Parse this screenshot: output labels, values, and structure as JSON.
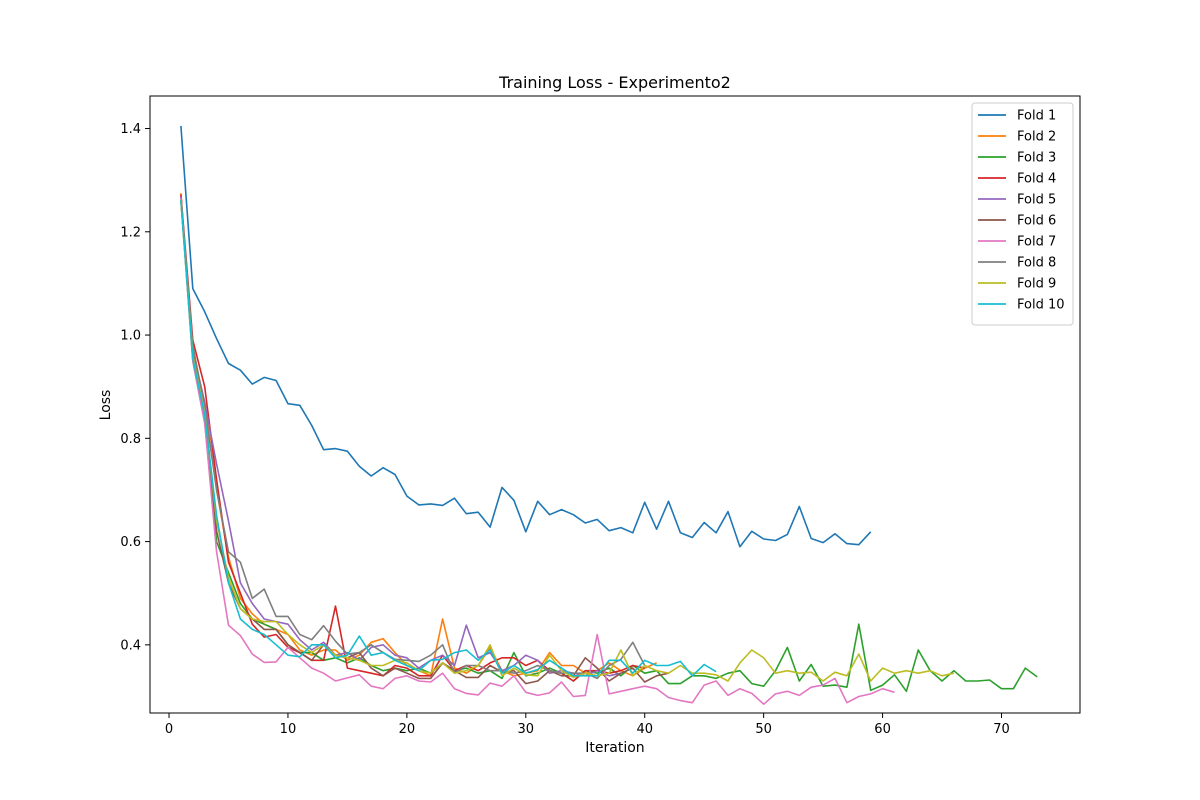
{
  "chart_data": {
    "type": "line",
    "title": "Training Loss - Experimento2",
    "xlabel": "Iteration",
    "ylabel": "Loss",
    "xlim": [
      -1.6,
      76.6
    ],
    "ylim": [
      0.268,
      1.463
    ],
    "xticks": [
      0,
      10,
      20,
      30,
      40,
      50,
      60,
      70
    ],
    "yticks": [
      0.4,
      0.6,
      0.8,
      1.0,
      1.2,
      1.4
    ],
    "ytick_labels": [
      "0.4",
      "0.6",
      "0.8",
      "1.0",
      "1.2",
      "1.4"
    ],
    "grid": false,
    "legend_position": "top-right",
    "series": [
      {
        "name": "Fold 1",
        "color": "#1f77b4",
        "values": [
          1.405,
          1.09,
          1.045,
          0.993,
          0.945,
          0.932,
          0.905,
          0.918,
          0.912,
          0.867,
          0.864,
          0.825,
          0.778,
          0.78,
          0.775,
          0.746,
          0.727,
          0.743,
          0.73,
          0.688,
          0.671,
          0.673,
          0.67,
          0.684,
          0.654,
          0.657,
          0.628,
          0.705,
          0.68,
          0.619,
          0.678,
          0.652,
          0.662,
          0.652,
          0.636,
          0.643,
          0.621,
          0.627,
          0.617,
          0.676,
          0.624,
          0.678,
          0.617,
          0.608,
          0.637,
          0.617,
          0.658,
          0.59,
          0.62,
          0.605,
          0.602,
          0.614,
          0.668,
          0.606,
          0.598,
          0.615,
          0.596,
          0.594,
          0.619
        ]
      },
      {
        "name": "Fold 2",
        "color": "#ff7f0e",
        "values": [
          1.275,
          0.96,
          0.87,
          0.7,
          0.57,
          0.49,
          0.46,
          0.44,
          0.43,
          0.42,
          0.39,
          0.38,
          0.39,
          0.39,
          0.37,
          0.38,
          0.405,
          0.412,
          0.385,
          0.36,
          0.35,
          0.34,
          0.45,
          0.355,
          0.345,
          0.36,
          0.395,
          0.35,
          0.34,
          0.345,
          0.35,
          0.385,
          0.36,
          0.36,
          0.345,
          0.35,
          0.365,
          0.35,
          0.34,
          0.355,
          0.365
        ]
      },
      {
        "name": "Fold 3",
        "color": "#2ca02c",
        "values": [
          1.26,
          0.95,
          0.83,
          0.6,
          0.54,
          0.48,
          0.45,
          0.44,
          0.43,
          0.4,
          0.385,
          0.385,
          0.37,
          0.375,
          0.365,
          0.375,
          0.36,
          0.35,
          0.355,
          0.35,
          0.355,
          0.345,
          0.365,
          0.35,
          0.355,
          0.345,
          0.35,
          0.335,
          0.385,
          0.34,
          0.345,
          0.355,
          0.345,
          0.33,
          0.35,
          0.345,
          0.355,
          0.34,
          0.36,
          0.345,
          0.35,
          0.325,
          0.325,
          0.34,
          0.34,
          0.335,
          0.345,
          0.35,
          0.325,
          0.32,
          0.35,
          0.395,
          0.33,
          0.362,
          0.32,
          0.322,
          0.318,
          0.44,
          0.312,
          0.322,
          0.342,
          0.31,
          0.39,
          0.35,
          0.33,
          0.35,
          0.33,
          0.33,
          0.332,
          0.315,
          0.315,
          0.355,
          0.338
        ]
      },
      {
        "name": "Fold 4",
        "color": "#d62728",
        "values": [
          1.272,
          0.99,
          0.9,
          0.72,
          0.56,
          0.5,
          0.44,
          0.415,
          0.42,
          0.395,
          0.385,
          0.37,
          0.37,
          0.475,
          0.355,
          0.35,
          0.345,
          0.34,
          0.36,
          0.355,
          0.34,
          0.34,
          0.38,
          0.35,
          0.36,
          0.35,
          0.365,
          0.375,
          0.375,
          0.36,
          0.37,
          0.35,
          0.345,
          0.33,
          0.35,
          0.35,
          0.345,
          0.35,
          0.36,
          0.355
        ]
      },
      {
        "name": "Fold 5",
        "color": "#9467bd",
        "values": [
          1.268,
          0.97,
          0.87,
          0.75,
          0.64,
          0.52,
          0.48,
          0.45,
          0.445,
          0.44,
          0.41,
          0.39,
          0.405,
          0.38,
          0.385,
          0.37,
          0.395,
          0.4,
          0.38,
          0.375,
          0.355,
          0.37,
          0.38,
          0.36,
          0.438,
          0.375,
          0.385,
          0.35,
          0.36,
          0.38,
          0.37,
          0.345,
          0.35,
          0.345,
          0.34,
          0.35,
          0.34,
          0.345
        ]
      },
      {
        "name": "Fold 6",
        "color": "#8c564b",
        "values": [
          1.262,
          0.965,
          0.86,
          0.62,
          0.52,
          0.47,
          0.45,
          0.43,
          0.43,
          0.4,
          0.385,
          0.37,
          0.4,
          0.38,
          0.375,
          0.385,
          0.355,
          0.34,
          0.355,
          0.345,
          0.335,
          0.335,
          0.365,
          0.35,
          0.337,
          0.337,
          0.36,
          0.347,
          0.35,
          0.325,
          0.33,
          0.35,
          0.34,
          0.34,
          0.375,
          0.355,
          0.33,
          0.345,
          0.355,
          0.328,
          0.34,
          0.345
        ]
      },
      {
        "name": "Fold 7",
        "color": "#e377c2",
        "values": [
          1.265,
          0.95,
          0.83,
          0.58,
          0.438,
          0.418,
          0.382,
          0.366,
          0.367,
          0.395,
          0.375,
          0.355,
          0.345,
          0.33,
          0.336,
          0.342,
          0.32,
          0.315,
          0.335,
          0.34,
          0.33,
          0.328,
          0.345,
          0.315,
          0.306,
          0.303,
          0.326,
          0.32,
          0.34,
          0.308,
          0.302,
          0.307,
          0.328,
          0.3,
          0.302,
          0.42,
          0.305,
          0.31,
          0.315,
          0.32,
          0.315,
          0.298,
          0.292,
          0.288,
          0.322,
          0.33,
          0.302,
          0.315,
          0.306,
          0.285,
          0.305,
          0.31,
          0.302,
          0.318,
          0.322,
          0.335,
          0.288,
          0.3,
          0.305,
          0.315,
          0.308
        ]
      },
      {
        "name": "Fold 8",
        "color": "#7f7f7f",
        "values": [
          1.262,
          0.98,
          0.86,
          0.7,
          0.58,
          0.56,
          0.49,
          0.508,
          0.455,
          0.455,
          0.42,
          0.41,
          0.437,
          0.407,
          0.382,
          0.385,
          0.4,
          0.385,
          0.372,
          0.37,
          0.368,
          0.38,
          0.4,
          0.345,
          0.36,
          0.36,
          0.35,
          0.35,
          0.345,
          0.35,
          0.36,
          0.35,
          0.345,
          0.345,
          0.345,
          0.335,
          0.36,
          0.372,
          0.405,
          0.36
        ]
      },
      {
        "name": "Fold 9",
        "color": "#bcbd22",
        "values": [
          1.262,
          0.96,
          0.85,
          0.64,
          0.53,
          0.47,
          0.45,
          0.445,
          0.445,
          0.42,
          0.4,
          0.385,
          0.4,
          0.38,
          0.375,
          0.37,
          0.36,
          0.36,
          0.37,
          0.365,
          0.35,
          0.345,
          0.365,
          0.345,
          0.35,
          0.36,
          0.4,
          0.34,
          0.355,
          0.342,
          0.34,
          0.38,
          0.35,
          0.337,
          0.345,
          0.34,
          0.345,
          0.39,
          0.34,
          0.36,
          0.35,
          0.345,
          0.36,
          0.345,
          0.345,
          0.342,
          0.33,
          0.365,
          0.39,
          0.375,
          0.345,
          0.35,
          0.345,
          0.347,
          0.33,
          0.347,
          0.34,
          0.382,
          0.33,
          0.355,
          0.345,
          0.35,
          0.345,
          0.35,
          0.34,
          0.345
        ]
      },
      {
        "name": "Fold 10",
        "color": "#17becf",
        "values": [
          1.262,
          0.955,
          0.845,
          0.65,
          0.52,
          0.45,
          0.43,
          0.42,
          0.4,
          0.38,
          0.377,
          0.4,
          0.4,
          0.375,
          0.38,
          0.417,
          0.38,
          0.385,
          0.37,
          0.36,
          0.35,
          0.37,
          0.372,
          0.385,
          0.39,
          0.37,
          0.39,
          0.345,
          0.36,
          0.345,
          0.352,
          0.37,
          0.355,
          0.34,
          0.34,
          0.34,
          0.37,
          0.37,
          0.345,
          0.37,
          0.36,
          0.36,
          0.368,
          0.34,
          0.362,
          0.348
        ]
      }
    ]
  }
}
